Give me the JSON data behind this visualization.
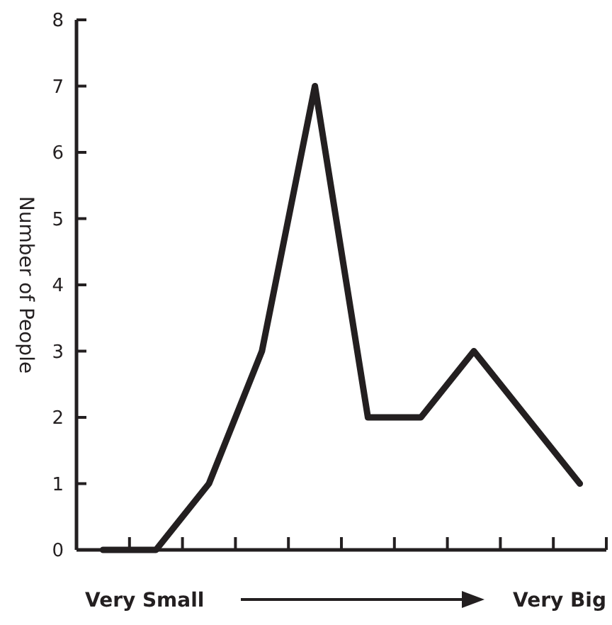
{
  "chart_data": {
    "type": "line",
    "ylabel": "Number of People",
    "categories": [
      null,
      null,
      null,
      null,
      null,
      null,
      null,
      null,
      null,
      null
    ],
    "series": [
      {
        "color": "#231f20",
        "values": [
          0,
          0,
          1,
          3,
          7,
          2,
          2,
          3,
          2,
          1
        ]
      }
    ],
    "ylim": [
      0,
      8
    ],
    "yticks": [
      0,
      1,
      2,
      3,
      4,
      5,
      6,
      7,
      8
    ],
    "tick_labels": "y",
    "grid": false,
    "marker": "none",
    "line_style": "solid",
    "annotations": [
      "Very Small",
      "Very Big"
    ]
  }
}
